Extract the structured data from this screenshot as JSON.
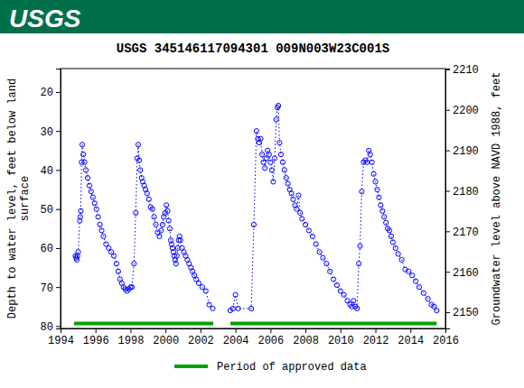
{
  "header": {
    "logo": "USGS"
  },
  "chart_data": {
    "type": "scatter",
    "title": "USGS 345146117094301 009N003W23C001S",
    "y_label": [
      "Depth to water level, feet below land",
      "surface"
    ],
    "y2_label": "Groundwater level above NAVD 1988, feet",
    "xlim": [
      1994,
      2016
    ],
    "xticks": [
      1994,
      1996,
      1998,
      2000,
      2002,
      2004,
      2006,
      2008,
      2010,
      2012,
      2014,
      2016
    ],
    "ylim": [
      80.6,
      14
    ],
    "yticks": [
      20,
      30,
      40,
      50,
      60,
      70,
      80
    ],
    "y2lim": [
      2146,
      2210.2
    ],
    "y2ticks": [
      2150,
      2160,
      2170,
      2180,
      2190,
      2200,
      2210
    ],
    "legend": "bottom",
    "series": [
      {
        "type": "scatter",
        "color": "#0000ff",
        "marker": "circle",
        "line_style": "dotted",
        "x": [
          1994.85,
          1994.89,
          1994.93,
          1994.97,
          1995.01,
          1995.1,
          1995.13,
          1995.16,
          1995.2,
          1995.24,
          1995.3,
          1995.37,
          1995.45,
          1995.55,
          1995.65,
          1995.75,
          1995.85,
          1995.95,
          1996.05,
          1996.15,
          1996.25,
          1996.35,
          1996.45,
          1996.6,
          1996.75,
          1996.9,
          1997.05,
          1997.2,
          1997.3,
          1997.4,
          1997.5,
          1997.6,
          1997.7,
          1997.8,
          1997.9,
          1998.0,
          1998.08,
          1998.2,
          1998.3,
          1998.38,
          1998.44,
          1998.5,
          1998.56,
          1998.63,
          1998.7,
          1998.78,
          1998.86,
          1998.95,
          1999.05,
          1999.15,
          1999.25,
          1999.35,
          1999.45,
          1999.55,
          1999.65,
          1999.75,
          1999.83,
          1999.9,
          1999.97,
          2000.05,
          2000.12,
          2000.18,
          2000.25,
          2000.3,
          2000.35,
          2000.4,
          2000.45,
          2000.5,
          2000.55,
          2000.6,
          2000.65,
          2000.7,
          2000.75,
          2000.8,
          2000.85,
          2000.95,
          2001.05,
          2001.15,
          2001.25,
          2001.35,
          2001.45,
          2001.55,
          2001.65,
          2001.75,
          2001.9,
          2002.1,
          2002.3,
          2002.5,
          2002.7,
          2003.2,
          2003.7,
          2003.85,
          2004.0,
          2004.15,
          2004.9,
          2005.05,
          2005.2,
          2005.28,
          2005.36,
          2005.44,
          2005.52,
          2005.6,
          2005.68,
          2005.76,
          2005.84,
          2005.92,
          2006.0,
          2006.08,
          2006.16,
          2006.24,
          2006.33,
          2006.4,
          2006.45,
          2006.52,
          2006.6,
          2006.7,
          2006.8,
          2006.9,
          2007.0,
          2007.1,
          2007.2,
          2007.3,
          2007.4,
          2007.5,
          2007.6,
          2007.7,
          2007.8,
          2008.0,
          2008.2,
          2008.4,
          2008.6,
          2008.8,
          2009.0,
          2009.2,
          2009.4,
          2009.6,
          2009.8,
          2010.0,
          2010.2,
          2010.4,
          2010.55,
          2010.65,
          2010.75,
          2010.85,
          2010.95,
          2011.05,
          2011.12,
          2011.22,
          2011.32,
          2011.42,
          2011.52,
          2011.62,
          2011.7,
          2011.8,
          2011.9,
          2012.0,
          2012.1,
          2012.2,
          2012.3,
          2012.4,
          2012.5,
          2012.6,
          2012.7,
          2012.8,
          2012.9,
          2013.0,
          2013.15,
          2013.3,
          2013.5,
          2013.7,
          2013.9,
          2014.1,
          2014.3,
          2014.5,
          2014.75,
          2015.0,
          2015.2,
          2015.35,
          2015.5
        ],
        "values": [
          62,
          62.5,
          63,
          62,
          61,
          53,
          52,
          50.5,
          38,
          33.5,
          36,
          38,
          40,
          42,
          44,
          45.5,
          47,
          48.5,
          50,
          52,
          54,
          55.5,
          57,
          59,
          60,
          61,
          62,
          64,
          66,
          68,
          69,
          70,
          70.5,
          71,
          70.5,
          70,
          70,
          64,
          51,
          37,
          33.5,
          37.5,
          40,
          42,
          43,
          44,
          45,
          46,
          47.5,
          49.5,
          50,
          52,
          54,
          56,
          57,
          55.5,
          54,
          52,
          51,
          49,
          50.5,
          53,
          55,
          58,
          59,
          60,
          61,
          62,
          63,
          64,
          62,
          60,
          58,
          57,
          58,
          60,
          61,
          62,
          63,
          64,
          65,
          66,
          67,
          68,
          69,
          70,
          71,
          74.5,
          75.5,
          null,
          76,
          75.5,
          72,
          75.5,
          75.5,
          54,
          30,
          32,
          33,
          32,
          36,
          38,
          39.5,
          37,
          35,
          36,
          38,
          40,
          43,
          37,
          27,
          24,
          23.5,
          33,
          36,
          38,
          40,
          42,
          43.5,
          45,
          46,
          47.5,
          49,
          50,
          46.5,
          51,
          52.5,
          54,
          55.5,
          57,
          59,
          61,
          62.5,
          64,
          66,
          68,
          69.5,
          71,
          72,
          73.5,
          74.5,
          75,
          73.5,
          75,
          75.5,
          64,
          59.5,
          45.5,
          38,
          37.5,
          38,
          35,
          36,
          38,
          41,
          43,
          45,
          47,
          49,
          50.5,
          52,
          53.5,
          55,
          55.5,
          57,
          58.5,
          60,
          61.5,
          63,
          65.5,
          66,
          67,
          68.5,
          70,
          71.5,
          73,
          74.5,
          75,
          76
        ]
      },
      {
        "name": "Period of approved data",
        "type": "line",
        "color": "#00a000",
        "line_style": "solid",
        "x": [
          1994.77,
          2002.73,
          2003.2,
          2003.71,
          2015.5
        ],
        "values": [
          79.3,
          79.3,
          null,
          79.3,
          79.3
        ]
      }
    ]
  }
}
